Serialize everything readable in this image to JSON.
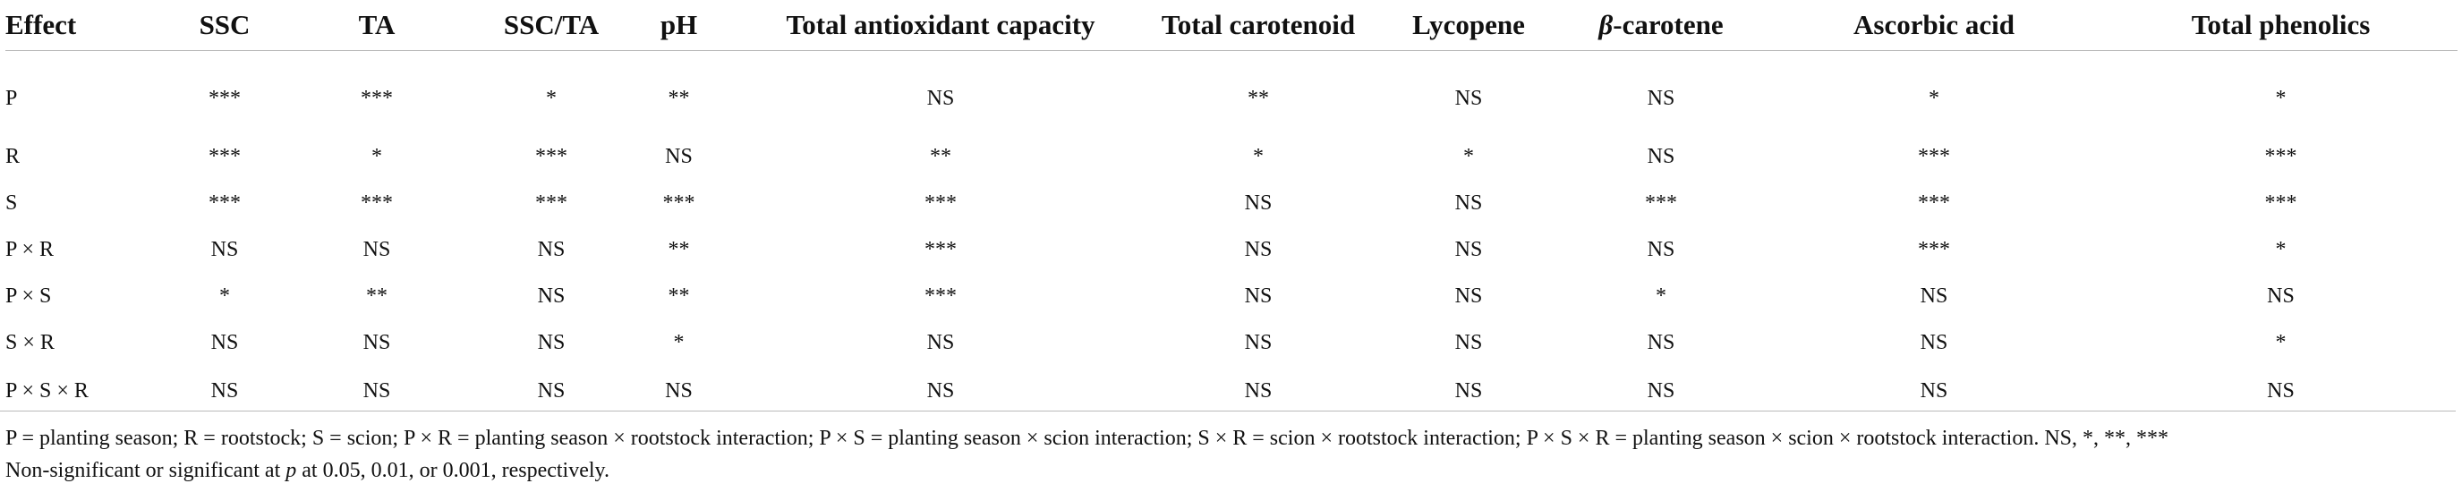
{
  "table": {
    "columns": [
      "Effect",
      "SSC",
      "TA",
      "SSC/TA",
      "pH",
      "Total antioxidant capacity",
      "Total carotenoid",
      "Lycopene",
      "β-carotene",
      "Ascorbic acid",
      "Total phenolics"
    ],
    "rows": [
      [
        "P",
        "***",
        "***",
        "*",
        "**",
        "NS",
        "**",
        "NS",
        "NS",
        "*",
        "*"
      ],
      [
        "R",
        "***",
        "*",
        "***",
        "NS",
        "**",
        "*",
        "*",
        "NS",
        "***",
        "***"
      ],
      [
        "S",
        "***",
        "***",
        "***",
        "***",
        "***",
        "NS",
        "NS",
        "***",
        "***",
        "***"
      ],
      [
        "P × R",
        "NS",
        "NS",
        "NS",
        "**",
        "***",
        "NS",
        "NS",
        "NS",
        "***",
        "*"
      ],
      [
        "P × S",
        "*",
        "**",
        "NS",
        "**",
        "***",
        "NS",
        "NS",
        "*",
        "NS",
        "NS"
      ],
      [
        "S × R",
        "NS",
        "NS",
        "NS",
        "*",
        "NS",
        "NS",
        "NS",
        "NS",
        "NS",
        "*"
      ],
      [
        "P × S × R",
        "NS",
        "NS",
        "NS",
        "NS",
        "NS",
        "NS",
        "NS",
        "NS",
        "NS",
        "NS"
      ]
    ]
  },
  "footnote": {
    "line1": "P = planting season; R = rootstock; S = scion; P × R = planting season × rootstock interaction; P × S = planting season × scion interaction; S × R = scion × rootstock interaction; P × S × R = planting season × scion × rootstock interaction. NS, *, **, ***",
    "line2_pre": "Non-significant or significant at ",
    "line2_p": "p",
    "line2_post": " at 0.05, 0.01, or 0.001, respectively."
  }
}
